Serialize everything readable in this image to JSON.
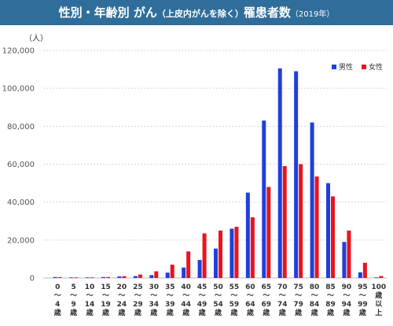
{
  "title": {
    "main": "性別・年齢別 がん",
    "paren": "（上皮内がんを除く）",
    "suffix": "罹患者数",
    "year": "（2019年）"
  },
  "colors": {
    "male": "#1f3fdc",
    "female": "#e8141e",
    "title_bg": "#2f6e9a"
  },
  "chart_data": {
    "type": "bar",
    "unit_label": "（人）",
    "ylim": [
      0,
      120000
    ],
    "yticks": [
      "0",
      "20,000",
      "40,000",
      "60,000",
      "80,000",
      "100,000",
      "120,000"
    ],
    "ytick_values": [
      0,
      20000,
      40000,
      60000,
      80000,
      100000,
      120000
    ],
    "grid": true,
    "legend_position": "top-right",
    "categories": [
      [
        "0",
        "〜",
        "4",
        "歳"
      ],
      [
        "5",
        "〜",
        "9",
        "歳"
      ],
      [
        "10",
        "〜",
        "14",
        "歳"
      ],
      [
        "15",
        "〜",
        "19",
        "歳"
      ],
      [
        "20",
        "〜",
        "24",
        "歳"
      ],
      [
        "25",
        "〜",
        "29",
        "歳"
      ],
      [
        "30",
        "〜",
        "34",
        "歳"
      ],
      [
        "35",
        "〜",
        "39",
        "歳"
      ],
      [
        "40",
        "〜",
        "44",
        "歳"
      ],
      [
        "45",
        "〜",
        "49",
        "歳"
      ],
      [
        "50",
        "〜",
        "54",
        "歳"
      ],
      [
        "55",
        "〜",
        "59",
        "歳"
      ],
      [
        "60",
        "〜",
        "64",
        "歳"
      ],
      [
        "65",
        "〜",
        "69",
        "歳"
      ],
      [
        "70",
        "〜",
        "74",
        "歳"
      ],
      [
        "75",
        "〜",
        "79",
        "歳"
      ],
      [
        "80",
        "〜",
        "84",
        "歳"
      ],
      [
        "85",
        "〜",
        "89",
        "歳"
      ],
      [
        "90",
        "〜",
        "94",
        "歳"
      ],
      [
        "95",
        "〜",
        "99",
        "歳"
      ],
      [
        "100",
        "歳",
        "以",
        "上"
      ]
    ],
    "series": [
      {
        "name": "男性",
        "color": "#1f3fdc",
        "values": [
          500,
          300,
          300,
          500,
          800,
          1000,
          1500,
          2800,
          5500,
          9500,
          15500,
          26000,
          45000,
          83000,
          110500,
          109000,
          82000,
          50000,
          19000,
          3000,
          300
        ]
      },
      {
        "name": "女性",
        "color": "#e8141e",
        "values": [
          400,
          300,
          300,
          500,
          900,
          1800,
          3500,
          7000,
          14000,
          23500,
          25000,
          27000,
          32000,
          48000,
          59000,
          60000,
          53500,
          43000,
          25000,
          8000,
          1000
        ]
      }
    ]
  }
}
